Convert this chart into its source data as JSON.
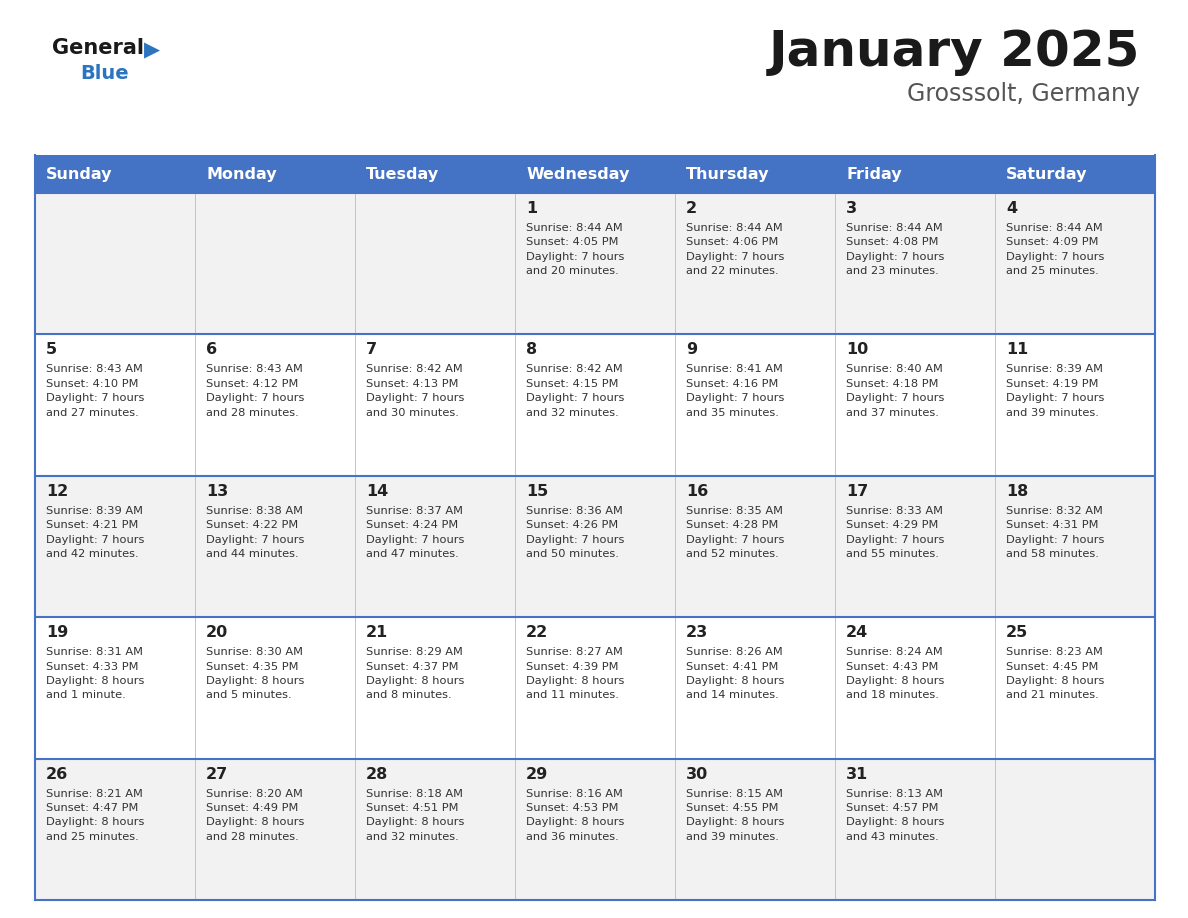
{
  "title": "January 2025",
  "subtitle": "Grosssolt, Germany",
  "days_of_week": [
    "Sunday",
    "Monday",
    "Tuesday",
    "Wednesday",
    "Thursday",
    "Friday",
    "Saturday"
  ],
  "header_bg": "#4472C4",
  "header_text": "#FFFFFF",
  "row_bg_odd": "#F2F2F2",
  "row_bg_even": "#FFFFFF",
  "border_color": "#4472C4",
  "day_text_color": "#222222",
  "info_text_color": "#333333",
  "logo_general_color": "#1a1a1a",
  "logo_blue_color": "#2B75C0",
  "logo_triangle_color": "#2B75C0",
  "title_color": "#1a1a1a",
  "subtitle_color": "#555555",
  "calendar": [
    [
      {
        "day": "",
        "info": ""
      },
      {
        "day": "",
        "info": ""
      },
      {
        "day": "",
        "info": ""
      },
      {
        "day": "1",
        "info": "Sunrise: 8:44 AM\nSunset: 4:05 PM\nDaylight: 7 hours\nand 20 minutes."
      },
      {
        "day": "2",
        "info": "Sunrise: 8:44 AM\nSunset: 4:06 PM\nDaylight: 7 hours\nand 22 minutes."
      },
      {
        "day": "3",
        "info": "Sunrise: 8:44 AM\nSunset: 4:08 PM\nDaylight: 7 hours\nand 23 minutes."
      },
      {
        "day": "4",
        "info": "Sunrise: 8:44 AM\nSunset: 4:09 PM\nDaylight: 7 hours\nand 25 minutes."
      }
    ],
    [
      {
        "day": "5",
        "info": "Sunrise: 8:43 AM\nSunset: 4:10 PM\nDaylight: 7 hours\nand 27 minutes."
      },
      {
        "day": "6",
        "info": "Sunrise: 8:43 AM\nSunset: 4:12 PM\nDaylight: 7 hours\nand 28 minutes."
      },
      {
        "day": "7",
        "info": "Sunrise: 8:42 AM\nSunset: 4:13 PM\nDaylight: 7 hours\nand 30 minutes."
      },
      {
        "day": "8",
        "info": "Sunrise: 8:42 AM\nSunset: 4:15 PM\nDaylight: 7 hours\nand 32 minutes."
      },
      {
        "day": "9",
        "info": "Sunrise: 8:41 AM\nSunset: 4:16 PM\nDaylight: 7 hours\nand 35 minutes."
      },
      {
        "day": "10",
        "info": "Sunrise: 8:40 AM\nSunset: 4:18 PM\nDaylight: 7 hours\nand 37 minutes."
      },
      {
        "day": "11",
        "info": "Sunrise: 8:39 AM\nSunset: 4:19 PM\nDaylight: 7 hours\nand 39 minutes."
      }
    ],
    [
      {
        "day": "12",
        "info": "Sunrise: 8:39 AM\nSunset: 4:21 PM\nDaylight: 7 hours\nand 42 minutes."
      },
      {
        "day": "13",
        "info": "Sunrise: 8:38 AM\nSunset: 4:22 PM\nDaylight: 7 hours\nand 44 minutes."
      },
      {
        "day": "14",
        "info": "Sunrise: 8:37 AM\nSunset: 4:24 PM\nDaylight: 7 hours\nand 47 minutes."
      },
      {
        "day": "15",
        "info": "Sunrise: 8:36 AM\nSunset: 4:26 PM\nDaylight: 7 hours\nand 50 minutes."
      },
      {
        "day": "16",
        "info": "Sunrise: 8:35 AM\nSunset: 4:28 PM\nDaylight: 7 hours\nand 52 minutes."
      },
      {
        "day": "17",
        "info": "Sunrise: 8:33 AM\nSunset: 4:29 PM\nDaylight: 7 hours\nand 55 minutes."
      },
      {
        "day": "18",
        "info": "Sunrise: 8:32 AM\nSunset: 4:31 PM\nDaylight: 7 hours\nand 58 minutes."
      }
    ],
    [
      {
        "day": "19",
        "info": "Sunrise: 8:31 AM\nSunset: 4:33 PM\nDaylight: 8 hours\nand 1 minute."
      },
      {
        "day": "20",
        "info": "Sunrise: 8:30 AM\nSunset: 4:35 PM\nDaylight: 8 hours\nand 5 minutes."
      },
      {
        "day": "21",
        "info": "Sunrise: 8:29 AM\nSunset: 4:37 PM\nDaylight: 8 hours\nand 8 minutes."
      },
      {
        "day": "22",
        "info": "Sunrise: 8:27 AM\nSunset: 4:39 PM\nDaylight: 8 hours\nand 11 minutes."
      },
      {
        "day": "23",
        "info": "Sunrise: 8:26 AM\nSunset: 4:41 PM\nDaylight: 8 hours\nand 14 minutes."
      },
      {
        "day": "24",
        "info": "Sunrise: 8:24 AM\nSunset: 4:43 PM\nDaylight: 8 hours\nand 18 minutes."
      },
      {
        "day": "25",
        "info": "Sunrise: 8:23 AM\nSunset: 4:45 PM\nDaylight: 8 hours\nand 21 minutes."
      }
    ],
    [
      {
        "day": "26",
        "info": "Sunrise: 8:21 AM\nSunset: 4:47 PM\nDaylight: 8 hours\nand 25 minutes."
      },
      {
        "day": "27",
        "info": "Sunrise: 8:20 AM\nSunset: 4:49 PM\nDaylight: 8 hours\nand 28 minutes."
      },
      {
        "day": "28",
        "info": "Sunrise: 8:18 AM\nSunset: 4:51 PM\nDaylight: 8 hours\nand 32 minutes."
      },
      {
        "day": "29",
        "info": "Sunrise: 8:16 AM\nSunset: 4:53 PM\nDaylight: 8 hours\nand 36 minutes."
      },
      {
        "day": "30",
        "info": "Sunrise: 8:15 AM\nSunset: 4:55 PM\nDaylight: 8 hours\nand 39 minutes."
      },
      {
        "day": "31",
        "info": "Sunrise: 8:13 AM\nSunset: 4:57 PM\nDaylight: 8 hours\nand 43 minutes."
      },
      {
        "day": "",
        "info": ""
      }
    ]
  ]
}
